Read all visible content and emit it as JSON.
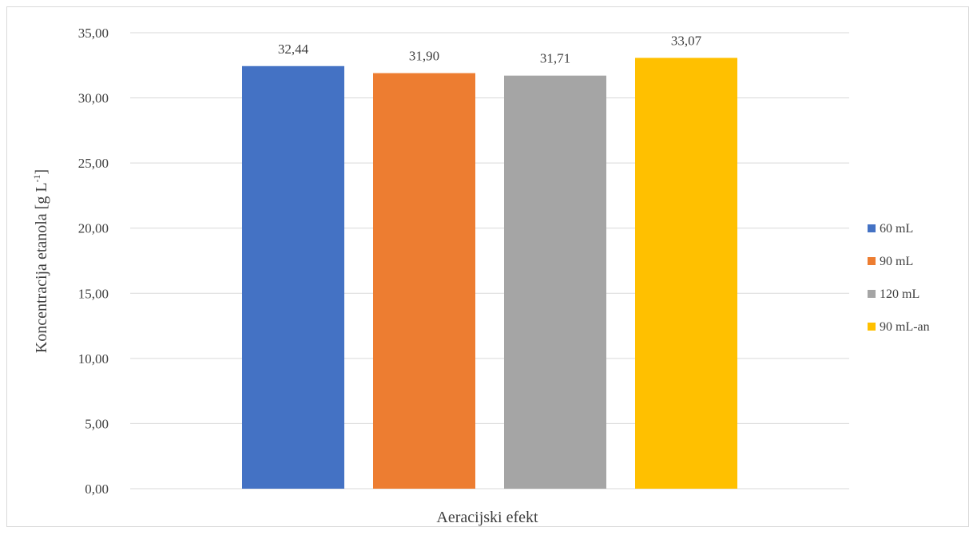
{
  "chart_data": {
    "type": "bar",
    "title": "",
    "xlabel": "Aeracijski efekt",
    "ylabel_main": "Koncentracija etanola [g L",
    "ylabel_sup": "-1",
    "ylabel_end": "]",
    "ylim": [
      0,
      35
    ],
    "ytick_step": 5,
    "yticks": [
      "0,00",
      "5,00",
      "10,00",
      "15,00",
      "20,00",
      "25,00",
      "30,00",
      "35,00"
    ],
    "grid": true,
    "legend_position": "right",
    "series": [
      {
        "name": "60 mL",
        "value": 32.44,
        "label": "32,44",
        "color": "#4472C4"
      },
      {
        "name": "90 mL",
        "value": 31.9,
        "label": "31,90",
        "color": "#ED7D31"
      },
      {
        "name": "120 mL",
        "value": 31.71,
        "label": "31,71",
        "color": "#A5A5A5"
      },
      {
        "name": "90 mL-an",
        "value": 33.07,
        "label": "33,07",
        "color": "#FFC000"
      }
    ]
  }
}
